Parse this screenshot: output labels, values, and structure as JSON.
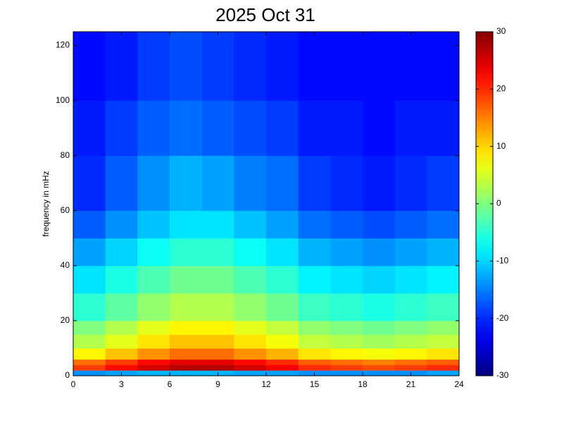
{
  "chart_data": {
    "type": "heatmap",
    "title": "2025 Oct 31",
    "y_label": "frequency in mHz",
    "colormap": "jet",
    "x": [
      0,
      2,
      4,
      6,
      8,
      10,
      12,
      14,
      16,
      18,
      20,
      22,
      24
    ],
    "y": [
      0,
      2,
      4,
      6,
      10,
      15,
      20,
      30,
      40,
      50,
      60,
      80,
      100,
      125
    ],
    "values": [
      [
        -14,
        -13,
        -12,
        -12,
        -12,
        -13,
        -13,
        -14,
        -14,
        -14,
        -14,
        -13
      ],
      [
        19,
        22,
        25,
        27,
        27,
        25,
        23,
        20,
        19,
        18,
        19,
        20
      ],
      [
        16,
        19,
        22,
        24,
        24,
        22,
        20,
        17,
        16,
        15,
        16,
        17
      ],
      [
        8,
        11,
        14,
        16,
        16,
        14,
        12,
        9,
        8,
        7,
        8,
        9
      ],
      [
        3,
        6,
        9,
        11,
        11,
        9,
        7,
        4,
        3,
        2,
        3,
        4
      ],
      [
        0,
        3,
        6,
        8,
        8,
        6,
        4,
        1,
        0,
        -1,
        0,
        1
      ],
      [
        -5,
        -2,
        1,
        3,
        3,
        1,
        -1,
        -4,
        -5,
        -6,
        -5,
        -4
      ],
      [
        -9,
        -6,
        -3,
        -1,
        -1,
        -3,
        -5,
        -8,
        -9,
        -10,
        -9,
        -8
      ],
      [
        -13,
        -10,
        -7,
        -5,
        -5,
        -7,
        -9,
        -12,
        -13,
        -14,
        -13,
        -12
      ],
      [
        -17,
        -14,
        -11,
        -9,
        -9,
        -11,
        -13,
        -16,
        -17,
        -18,
        -17,
        -16
      ],
      [
        -20,
        -17,
        -14,
        -12,
        -13,
        -15,
        -16,
        -19,
        -20,
        -21,
        -20,
        -19
      ],
      [
        -21,
        -19,
        -17,
        -16,
        -17,
        -18,
        -19,
        -21,
        -21,
        -22,
        -21,
        -21
      ],
      [
        -22,
        -21,
        -19,
        -18,
        -19,
        -20,
        -21,
        -22,
        -22,
        -22,
        -22,
        -22
      ]
    ],
    "xlim": [
      0,
      24
    ],
    "xticks": [
      0,
      3,
      6,
      9,
      12,
      15,
      18,
      21,
      24
    ],
    "ylim": [
      0,
      125
    ],
    "yticks": [
      0,
      20,
      40,
      60,
      80,
      100,
      120
    ],
    "clim": [
      -30,
      30
    ],
    "cticks": [
      -30,
      -20,
      -10,
      0,
      10,
      20,
      30
    ]
  }
}
